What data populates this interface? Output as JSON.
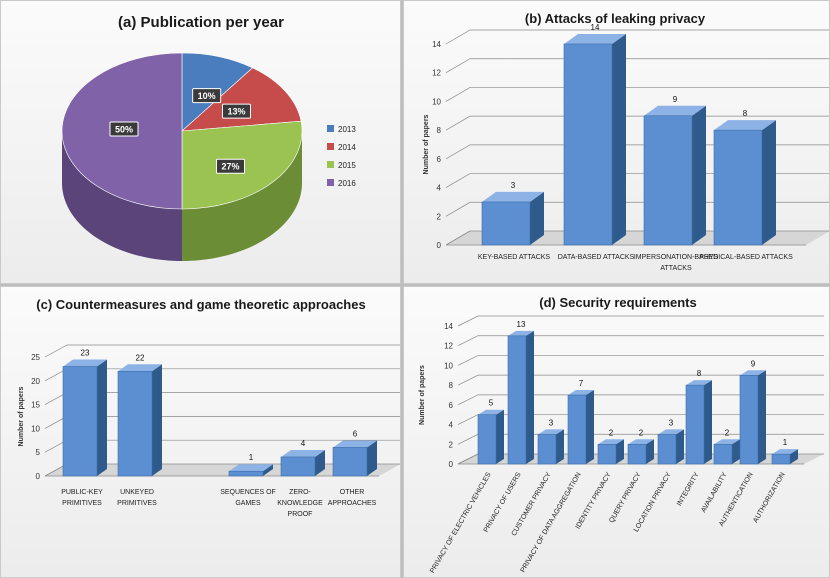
{
  "chart_data": [
    {
      "id": "a",
      "type": "pie",
      "title": "(a) Publication per year",
      "categories": [
        "2013",
        "2014",
        "2015",
        "2016"
      ],
      "values": [
        10,
        13,
        27,
        50
      ],
      "value_labels": [
        "10%",
        "13%",
        "27%",
        "50%"
      ],
      "colors": [
        "#4a7dbe",
        "#c64b4b",
        "#9ac352",
        "#7f62a8"
      ],
      "legend": "right"
    },
    {
      "id": "b",
      "type": "bar",
      "title": "(b) Attacks of leaking privacy",
      "ylabel": "Number of papers",
      "ylim": [
        0,
        14
      ],
      "yticks": [
        "0",
        "2",
        "4",
        "6",
        "8",
        "10",
        "12",
        "14"
      ],
      "categories": [
        "KEY-BASED ATTACKS",
        "DATA-BASED ATTACKS",
        "IMPERSONATION-BASED ATTACKS",
        "PHYSICAL-BASED ATTACKS"
      ],
      "values": [
        3,
        14,
        9,
        8
      ],
      "value_labels": [
        "3",
        "14",
        "9",
        "8"
      ]
    },
    {
      "id": "c",
      "type": "bar",
      "title": "(c) Countermeasures and game theoretic approaches",
      "ylabel": "Number of papers",
      "ylim": [
        0,
        25
      ],
      "yticks": [
        "0",
        "5",
        "10",
        "15",
        "20",
        "25"
      ],
      "categories": [
        "PUBLIC-KEY PRIMITIVES",
        "UNKEYED PRIMITIVES",
        "SEQUENCES OF GAMES",
        "ZERO-KNOWLEDGE PROOF",
        "OTHER APPROACHES"
      ],
      "values": [
        23,
        22,
        1,
        4,
        6
      ],
      "value_labels": [
        "23",
        "22",
        "1",
        "4",
        "6"
      ]
    },
    {
      "id": "d",
      "type": "bar",
      "title": "(d) Security requirements",
      "ylabel": "Number of papers",
      "ylim": [
        0,
        14
      ],
      "yticks": [
        "0",
        "2",
        "4",
        "6",
        "8",
        "10",
        "12",
        "14"
      ],
      "categories": [
        "PRIVACY OF ELECTRIC VEHICLES",
        "PRIVACY OF USERS",
        "CUSTOMER PRIVACY",
        "PRIVACY OF DATA AGGREGATION",
        "IDENTITY PRIVACY",
        "QUERY PRIVACY",
        "LOCATION PRIVACY",
        "INTEGRITY",
        "AVAILABILITY",
        "AUTHENTICATION",
        "AUTHORIZATION"
      ],
      "values": [
        5,
        13,
        3,
        7,
        2,
        2,
        3,
        8,
        2,
        9,
        1
      ],
      "value_labels": [
        "5",
        "13",
        "3",
        "7",
        "2",
        "2",
        "3",
        "8",
        "2",
        "9",
        "1"
      ]
    }
  ],
  "colors": {
    "bar_front": "#5b8fd2",
    "bar_side": "#2f5a8c",
    "bar_top": "#8db3e6"
  }
}
